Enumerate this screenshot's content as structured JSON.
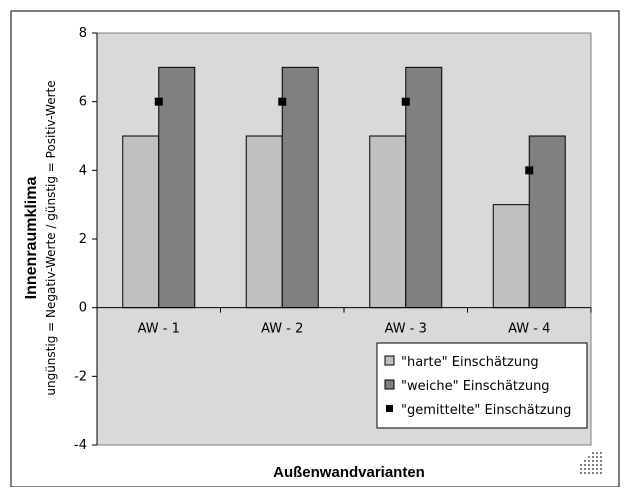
{
  "chart_data": {
    "type": "bar",
    "categories": [
      "AW - 1",
      "AW - 2",
      "AW - 3",
      "AW - 4"
    ],
    "series": [
      {
        "name": "\"harte\" Einschätzung",
        "values": [
          5,
          5,
          5,
          3
        ],
        "color": "#c0c0c0",
        "kind": "bar"
      },
      {
        "name": "\"weiche\" Einschätzung",
        "values": [
          7,
          7,
          7,
          5
        ],
        "color": "#808080",
        "kind": "bar"
      },
      {
        "name": "\"gemittelte\" Einschätzung",
        "values": [
          6,
          6,
          6,
          4
        ],
        "color": "#000000",
        "kind": "marker"
      }
    ],
    "ylim": [
      -4,
      8
    ],
    "yticks": [
      -4,
      -2,
      0,
      2,
      4,
      6,
      8
    ],
    "xlabel": "Außenwandvarianten",
    "ylabel": "Innenraumklima",
    "ylabel_sub": "ungünstig = Negativ-Werte / günstig = Positiv-Werte",
    "legend_position": "bottom-right",
    "plot_background": "#d9d9d9",
    "grid": false
  }
}
